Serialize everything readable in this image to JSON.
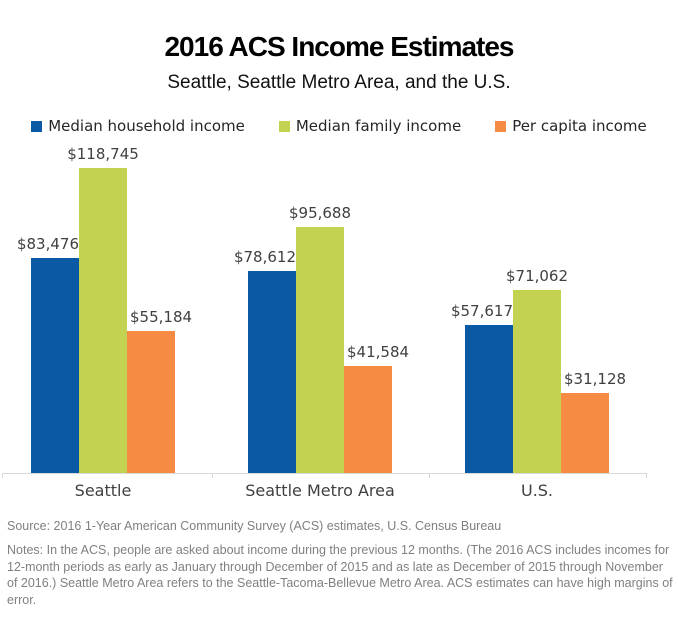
{
  "title": "2016 ACS Income Estimates",
  "subtitle": "Seattle, Seattle Metro Area, and the U.S.",
  "chart_data": {
    "type": "bar",
    "categories": [
      "Seattle",
      "Seattle Metro Area",
      "U.S."
    ],
    "series": [
      {
        "name": "Median household income",
        "color": "#0959a5",
        "values": [
          83476,
          78612,
          57617
        ],
        "labels": [
          "$83,476",
          "$78,612",
          "$57,617"
        ]
      },
      {
        "name": "Median family income",
        "color": "#c3d250",
        "values": [
          118745,
          95688,
          71062
        ],
        "labels": [
          "$118,745",
          "$95,688",
          "$71,062"
        ]
      },
      {
        "name": "Per capita income",
        "color": "#f68b44",
        "values": [
          55184,
          41584,
          31128
        ],
        "labels": [
          "$55,184",
          "$41,584",
          "$31,128"
        ]
      }
    ],
    "title": "2016 ACS Income Estimates",
    "subtitle": "Seattle, Seattle Metro Area, and the U.S.",
    "xlabel": "",
    "ylabel": "",
    "ylim": [
      0,
      140000
    ],
    "grid": false,
    "y_axis_shown": false,
    "data_labels": true,
    "legend_position": "top",
    "axis_color": "#d9d9d9",
    "label_text_color": "#404040"
  },
  "footer": {
    "source": "Source: 2016 1-Year American Community Survey (ACS) estimates, U.S. Census Bureau",
    "notes": "Notes: In the ACS, people are asked about income during the previous 12 months. (The 2016 ACS includes incomes for 12-month periods as early as January through December of 2015 and as late as December of 2015 through November of 2016.) Seattle Metro Area refers to the Seattle-Tacoma-Bellevue Metro Area. ACS estimates can have high margins of error."
  }
}
